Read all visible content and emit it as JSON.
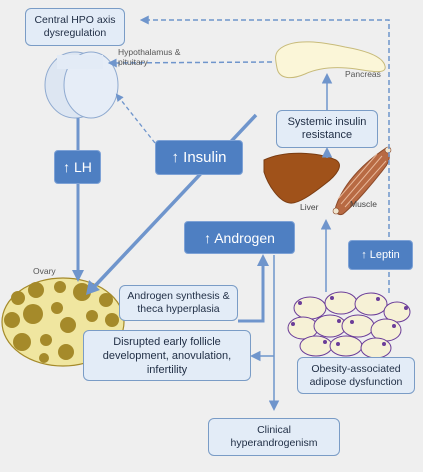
{
  "nodes": {
    "hpo": "Central HPO axis dysregulation",
    "hypothalamus": "Hypothalamus & pituitary",
    "pancreas": "Pancreas",
    "systemic_insulin": "Systemic insulin resistance",
    "lh": "↑ LH",
    "insulin": "↑ Insulin",
    "liver": "Liver",
    "muscle": "Muscle",
    "androgen": "↑ Androgen",
    "leptin": "↑ Leptin",
    "ovary": "Ovary",
    "androgen_synthesis": "Androgen synthesis & theca hyperplasia",
    "disrupted": "Disrupted early follicle development, anovulation, infertility",
    "obesity": "Obesity-associated adipose dysfunction",
    "clinical": "Clinical hyperandrogenism"
  },
  "colors": {
    "background": "#efefef",
    "box_fill": "#e3ecf7",
    "box_border": "#7a9cc6",
    "dark_box": "#4e7fc2",
    "arrow": "#6f95cc",
    "ovary_fill": "#f0e6a0",
    "follicle": "#a58a2a",
    "liver": "#a0521a",
    "muscle": "#b86a43",
    "pancreas": "#fbf6d8",
    "adipocyte": "#f6f1d6",
    "adipocyte_nucleus": "#6b3d99"
  }
}
